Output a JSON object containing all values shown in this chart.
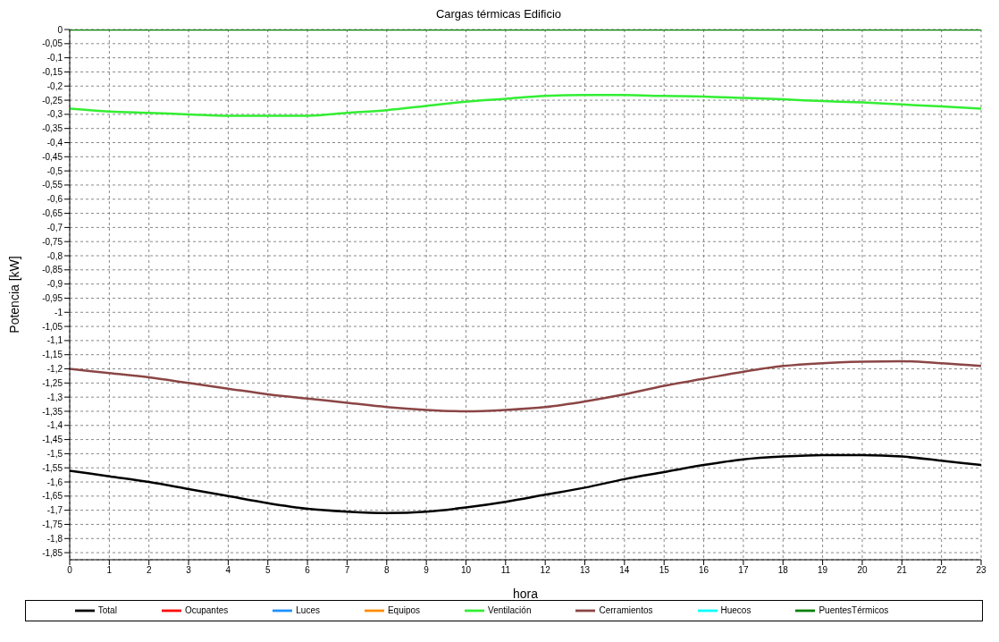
{
  "chart_data": {
    "type": "line",
    "title": "Cargas térmicas Edificio",
    "xlabel": "hora",
    "ylabel": "Potencia [kW]",
    "x": [
      0,
      1,
      2,
      3,
      4,
      5,
      6,
      7,
      8,
      9,
      10,
      11,
      12,
      13,
      14,
      15,
      16,
      17,
      18,
      19,
      20,
      21,
      22,
      23
    ],
    "xlim": [
      0,
      23
    ],
    "xticks": [
      0,
      1,
      2,
      3,
      4,
      5,
      6,
      7,
      8,
      9,
      10,
      11,
      12,
      13,
      14,
      15,
      16,
      17,
      18,
      19,
      20,
      21,
      22,
      23
    ],
    "ylim": [
      -1.875,
      0
    ],
    "yticks": [
      0,
      {
        "value": -0.05,
        "label": "-0,05"
      },
      {
        "value": -0.1,
        "label": "-0,1"
      },
      {
        "value": -0.15,
        "label": "-0,15"
      },
      {
        "value": -0.2,
        "label": "-0,2"
      },
      {
        "value": -0.25,
        "label": "-0,25"
      },
      {
        "value": -0.3,
        "label": "-0,3"
      },
      {
        "value": -0.35,
        "label": "-0,35"
      },
      {
        "value": -0.4,
        "label": "-0,4"
      },
      {
        "value": -0.45,
        "label": "-0,45"
      },
      {
        "value": -0.5,
        "label": "-0,5"
      },
      {
        "value": -0.55,
        "label": "-0,55"
      },
      {
        "value": -0.6,
        "label": "-0,6"
      },
      {
        "value": -0.65,
        "label": "-0,65"
      },
      {
        "value": -0.7,
        "label": "-0,7"
      },
      {
        "value": -0.75,
        "label": "-0,75"
      },
      {
        "value": -0.8,
        "label": "-0,8"
      },
      {
        "value": -0.85,
        "label": "-0,85"
      },
      {
        "value": -0.9,
        "label": "-0,9"
      },
      {
        "value": -0.95,
        "label": "-0,95"
      },
      -1,
      {
        "value": -1.05,
        "label": "-1,05"
      },
      {
        "value": -1.1,
        "label": "-1,1"
      },
      {
        "value": -1.15,
        "label": "-1,15"
      },
      {
        "value": -1.2,
        "label": "-1,2"
      },
      {
        "value": -1.25,
        "label": "-1,25"
      },
      {
        "value": -1.3,
        "label": "-1,3"
      },
      {
        "value": -1.35,
        "label": "-1,35"
      },
      {
        "value": -1.4,
        "label": "-1,4"
      },
      {
        "value": -1.45,
        "label": "-1,45"
      },
      {
        "value": -1.5,
        "label": "-1,5"
      },
      {
        "value": -1.55,
        "label": "-1,55"
      },
      {
        "value": -1.6,
        "label": "-1,6"
      },
      {
        "value": -1.65,
        "label": "-1,65"
      },
      {
        "value": -1.7,
        "label": "-1,7"
      },
      {
        "value": -1.75,
        "label": "-1,75"
      },
      {
        "value": -1.8,
        "label": "-1,8"
      },
      {
        "value": -1.85,
        "label": "-1,85"
      }
    ],
    "grid": true,
    "line_style": "solid",
    "marker": "none",
    "legend": "bottom",
    "series": [
      {
        "name": "Total",
        "color": "#000000",
        "values": [
          -1.56,
          -1.58,
          -1.6,
          -1.625,
          -1.65,
          -1.675,
          -1.695,
          -1.705,
          -1.71,
          -1.705,
          -1.69,
          -1.67,
          -1.645,
          -1.62,
          -1.59,
          -1.565,
          -1.54,
          -1.52,
          -1.51,
          -1.505,
          -1.505,
          -1.51,
          -1.525,
          -1.54
        ]
      },
      {
        "name": "Ocupantes",
        "color": "#ff0000",
        "values": [
          null,
          null,
          null,
          null,
          null,
          null,
          null,
          null,
          null,
          null,
          null,
          null,
          null,
          null,
          null,
          null,
          null,
          null,
          null,
          null,
          null,
          null,
          null,
          null
        ]
      },
      {
        "name": "Luces",
        "color": "#1e90ff",
        "values": [
          null,
          null,
          null,
          null,
          null,
          null,
          null,
          null,
          null,
          null,
          null,
          null,
          null,
          null,
          null,
          null,
          null,
          null,
          null,
          null,
          null,
          null,
          null,
          null
        ]
      },
      {
        "name": "Equipos",
        "color": "#ff8c00",
        "values": [
          null,
          null,
          null,
          null,
          null,
          null,
          null,
          null,
          null,
          null,
          null,
          null,
          null,
          null,
          null,
          null,
          null,
          null,
          null,
          null,
          null,
          null,
          null,
          null
        ]
      },
      {
        "name": "Ventilación",
        "color": "#33ee33",
        "values": [
          -0.28,
          -0.29,
          -0.295,
          -0.3,
          -0.305,
          -0.305,
          -0.305,
          -0.295,
          -0.285,
          -0.27,
          -0.255,
          -0.245,
          -0.235,
          -0.232,
          -0.232,
          -0.235,
          -0.237,
          -0.242,
          -0.247,
          -0.253,
          -0.258,
          -0.265,
          -0.272,
          -0.28
        ]
      },
      {
        "name": "Cerramientos",
        "color": "#8b4545",
        "values": [
          -1.2,
          -1.215,
          -1.23,
          -1.25,
          -1.27,
          -1.29,
          -1.305,
          -1.32,
          -1.335,
          -1.345,
          -1.35,
          -1.345,
          -1.335,
          -1.315,
          -1.29,
          -1.26,
          -1.235,
          -1.21,
          -1.19,
          -1.18,
          -1.175,
          -1.173,
          -1.18,
          -1.19
        ]
      },
      {
        "name": "Huecos",
        "color": "#00ffff",
        "values": [
          null,
          null,
          null,
          null,
          null,
          null,
          null,
          null,
          null,
          null,
          null,
          null,
          null,
          null,
          null,
          null,
          null,
          null,
          null,
          null,
          null,
          null,
          null,
          null
        ]
      },
      {
        "name": "PuentesTérmicos",
        "color": "#008000",
        "values": [
          0,
          0,
          0,
          0,
          0,
          0,
          0,
          0,
          0,
          0,
          0,
          0,
          0,
          0,
          0,
          0,
          0,
          0,
          0,
          0,
          0,
          0,
          0,
          0
        ]
      }
    ]
  }
}
